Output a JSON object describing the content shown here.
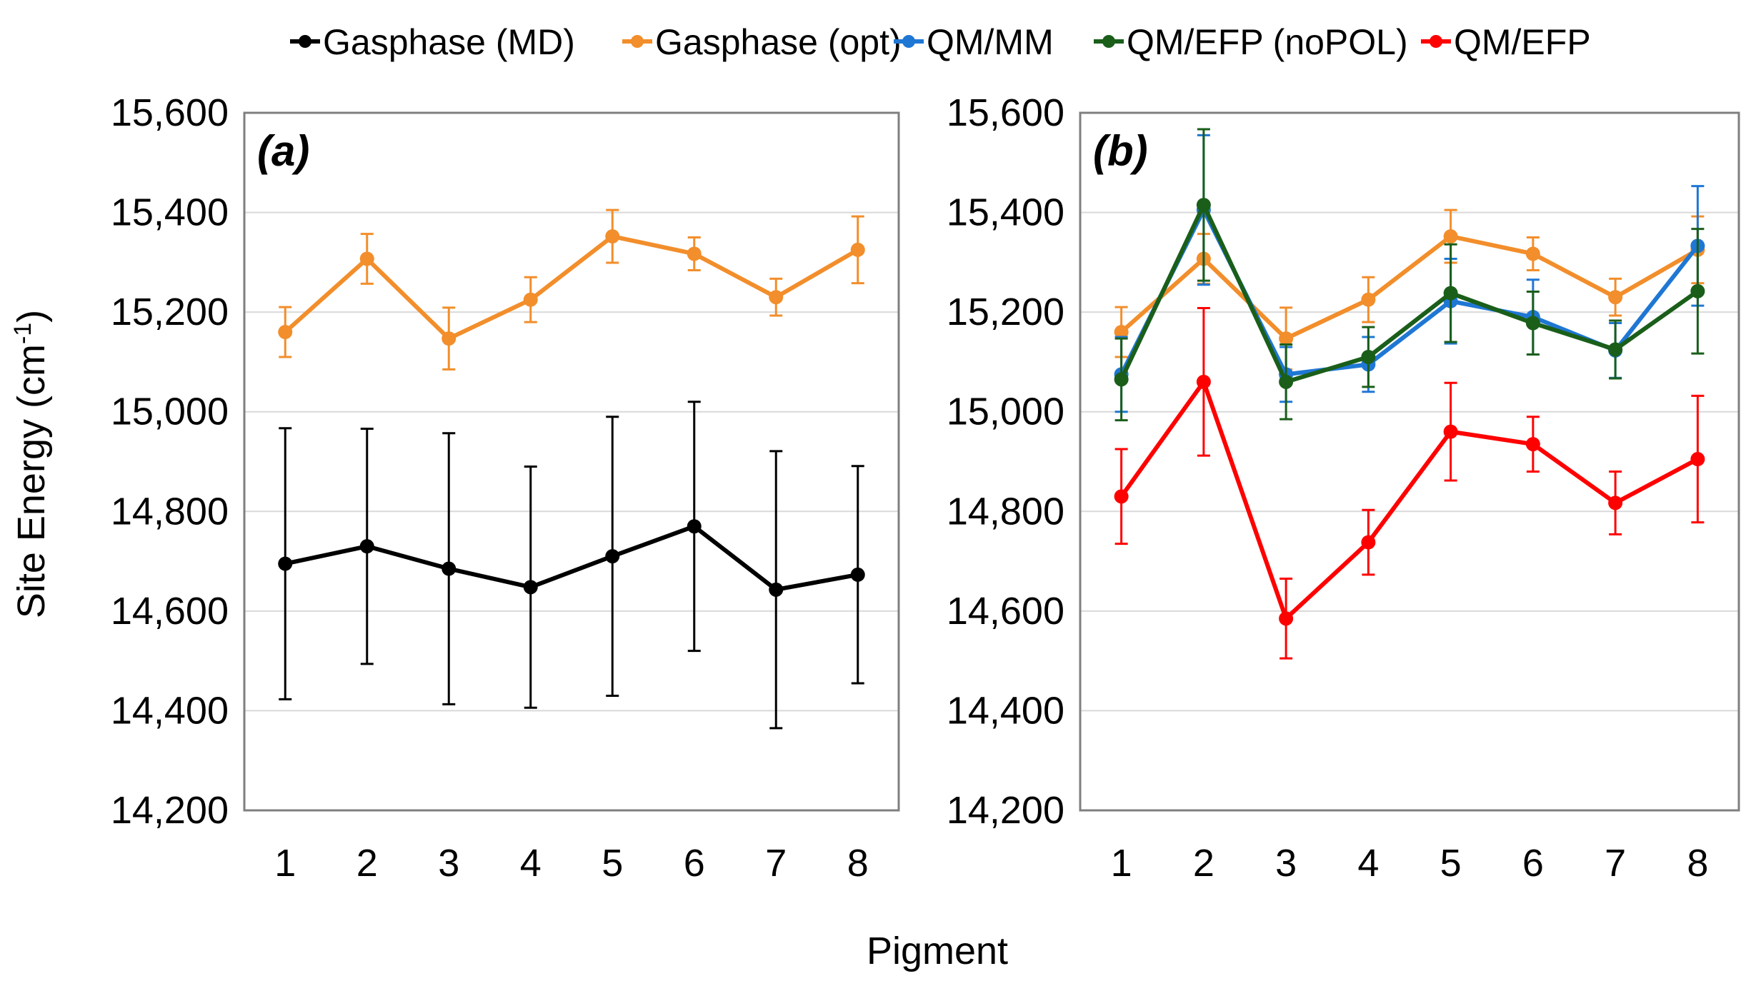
{
  "chart_data": [
    {
      "type": "line",
      "panel_label": "(a)",
      "ylabel": "Site Energy (cm-1)",
      "xlabel": "Pigment",
      "categories": [
        "1",
        "2",
        "3",
        "4",
        "5",
        "6",
        "7",
        "8"
      ],
      "ylim": [
        14200,
        15600
      ],
      "yticks": [
        "14,200",
        "14,400",
        "14,600",
        "14,800",
        "15,000",
        "15,200",
        "15,400",
        "15,600"
      ],
      "yticks_values": [
        14200,
        14400,
        14600,
        14800,
        15000,
        15200,
        15400,
        15600
      ],
      "grid": true,
      "series": [
        {
          "name": "Gasphase (MD)",
          "color": "#000000",
          "values": [
            14695,
            14730,
            14685,
            14648,
            14710,
            14770,
            14643,
            14673
          ],
          "errors": [
            272,
            236,
            272,
            242,
            280,
            250,
            278,
            218
          ]
        },
        {
          "name": "Gasphase (opt)",
          "color": "#f28e2b",
          "values": [
            15160,
            15307,
            15147,
            15225,
            15352,
            15317,
            15230,
            15325
          ],
          "errors": [
            50,
            50,
            62,
            45,
            53,
            33,
            37,
            67
          ]
        }
      ]
    },
    {
      "type": "line",
      "panel_label": "(b)",
      "xlabel": "Pigment",
      "categories": [
        "1",
        "2",
        "3",
        "4",
        "5",
        "6",
        "7",
        "8"
      ],
      "ylim": [
        14200,
        15600
      ],
      "yticks": [
        "14,200",
        "14,400",
        "14,600",
        "14,800",
        "15,000",
        "15,200",
        "15,400",
        "15,600"
      ],
      "yticks_values": [
        14200,
        14400,
        14600,
        14800,
        15000,
        15200,
        15400,
        15600
      ],
      "grid": true,
      "series": [
        {
          "name": "Gasphase (opt)",
          "color": "#f28e2b",
          "values": [
            15160,
            15307,
            15147,
            15225,
            15352,
            15317,
            15230,
            15325
          ],
          "errors": [
            50,
            50,
            62,
            45,
            53,
            33,
            37,
            67
          ]
        },
        {
          "name": "QM/MM",
          "color": "#1f77d4",
          "values": [
            15075,
            15405,
            15075,
            15095,
            15222,
            15190,
            15123,
            15333
          ],
          "errors": [
            75,
            150,
            55,
            55,
            85,
            75,
            55,
            120
          ]
        },
        {
          "name": "QM/EFP (noPOL)",
          "color": "#1a5e1a",
          "values": [
            15065,
            15415,
            15060,
            15110,
            15238,
            15178,
            15125,
            15242
          ],
          "errors": [
            82,
            152,
            75,
            60,
            98,
            63,
            58,
            125
          ]
        },
        {
          "name": "QM/EFP",
          "color": "#ff0000",
          "values": [
            14830,
            15060,
            14585,
            14738,
            14960,
            14935,
            14817,
            14905
          ],
          "errors": [
            95,
            148,
            80,
            65,
            98,
            55,
            63,
            127
          ]
        }
      ]
    }
  ],
  "legend": {
    "items": [
      {
        "name": "Gasphase (MD)",
        "color": "#000000"
      },
      {
        "name": "Gasphase (opt)",
        "color": "#f28e2b"
      },
      {
        "name": "QM/MM",
        "color": "#1f77d4"
      },
      {
        "name": "QM/EFP (noPOL)",
        "color": "#1a5e1a"
      },
      {
        "name": "QM/EFP",
        "color": "#ff0000"
      }
    ]
  },
  "shared": {
    "ylabel_main": "Site Energy (cm",
    "ylabel_sup": "-1",
    "ylabel_end": ")",
    "xlabel": "Pigment"
  }
}
